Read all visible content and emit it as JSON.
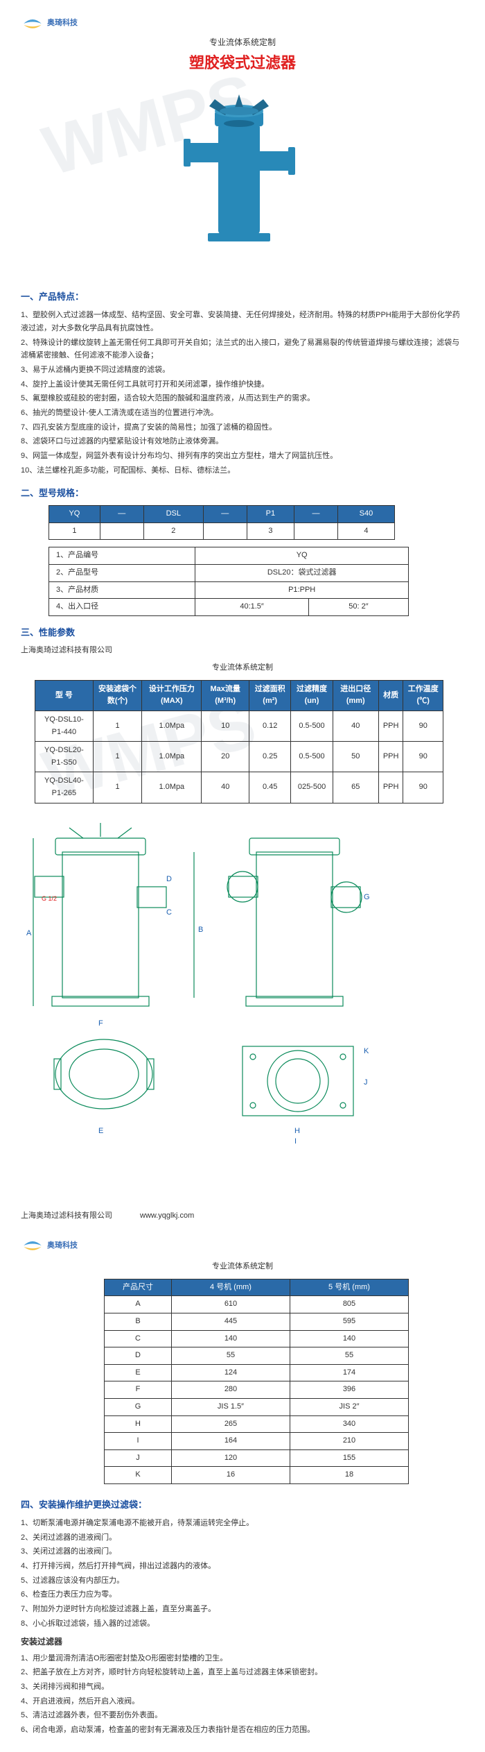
{
  "header": {
    "logo_text": "奥琦科技",
    "subtitle": "专业流体系统定制",
    "title": "塑胶袋式过滤器"
  },
  "sections": {
    "features_h": "一、产品特点：",
    "model_h": "二、型号规格：",
    "perf_h": "三、性能参数",
    "install_h": "四、安装操作维护更换过滤袋：",
    "install_sub": "安装过滤器"
  },
  "features": [
    "1、塑胶例入式过滤器一体成型、结构坚固、安全可靠、安装简捷、无任何焊接处，经济耐用。特殊的材质PPH能用于大部份化学药液过滤，对大多数化学品具有抗腐蚀性。",
    "2、特殊设计的螺纹旋转上盖无需任何工具即可开关自如；法兰式的出入接口，避免了易漏易裂的传统管道焊接与螺纹连接；滤袋与滤桶紧密接触、任何滤液不能渗入设备；",
    "3、易于从滤桶内更换不同过滤精度的滤袋。",
    "4、旋拧上盖设计使其无需任何工具就可打开和关闭滤罩，操作维护快捷。",
    "5、氟塑橡胶或硅胶的密封圈，适合较大范围的酸碱和温度药液，从而达到生产的需求。",
    "6、抽光的筒壁设计-使人工清洗或在适当的位置进行冲洗。",
    "7、四孔安装方型底座的设计，提高了安装的简易性；加强了滤桶的稳固性。",
    "8、滤袋环口与过滤器的内壁紧贴设计有效地防止液体旁漏。",
    "9、网篮一体成型，网篮外表有设计分布均匀、排列有序的突出立方型柱，增大了网篮抗压性。",
    "10、法兰螺栓孔距多功能，可配国标、美标、日标、德标法兰。"
  ],
  "model_table1": {
    "headers": [
      "YQ",
      "—",
      "DSL",
      "—",
      "P1",
      "—",
      "S40"
    ],
    "row": [
      "1",
      "",
      "2",
      "",
      "3",
      "",
      "4"
    ]
  },
  "model_table2": {
    "rows": [
      [
        "1、产品编号",
        "YQ",
        ""
      ],
      [
        "2、产品型号",
        "DSL20：袋式过滤器",
        ""
      ],
      [
        "3、产品材质",
        "P1:PPH",
        ""
      ],
      [
        "4、出入口径",
        "40:1.5″",
        "50: 2″"
      ]
    ]
  },
  "company": "上海奥琦过滤科技有限公司",
  "perf_subtitle": "专业流体系统定制",
  "perf_table": {
    "headers": [
      "型 号",
      "安装滤袋个数(个)",
      "设计工作压力(MAX)",
      "Max流量(M³/h)",
      "过滤面积(m²)",
      "过滤精度(un)",
      "进出口径(mm)",
      "材质",
      "工作温度(℃)"
    ],
    "rows": [
      [
        "YQ-DSL10-P1-440",
        "1",
        "1.0Mpa",
        "10",
        "0.12",
        "0.5-500",
        "40",
        "PPH",
        "90"
      ],
      [
        "YQ-DSL20-P1-S50",
        "1",
        "1.0Mpa",
        "20",
        "0.25",
        "0.5-500",
        "50",
        "PPH",
        "90"
      ],
      [
        "YQ-DSL40-P1-265",
        "1",
        "1.0Mpa",
        "40",
        "0.45",
        "025-500",
        "65",
        "PPH",
        "90"
      ]
    ]
  },
  "dim_subtitle": "专业流体系统定制",
  "dim_table": {
    "headers": [
      "产品尺寸",
      "4 号机 (mm)",
      "5 号机 (mm)"
    ],
    "rows": [
      [
        "A",
        "610",
        "805"
      ],
      [
        "B",
        "445",
        "595"
      ],
      [
        "C",
        "140",
        "140"
      ],
      [
        "D",
        "55",
        "55"
      ],
      [
        "E",
        "124",
        "174"
      ],
      [
        "F",
        "280",
        "396"
      ],
      [
        "G",
        "JIS 1.5″",
        "JIS 2″"
      ],
      [
        "H",
        "265",
        "340"
      ],
      [
        "I",
        "164",
        "210"
      ],
      [
        "J",
        "120",
        "155"
      ],
      [
        "K",
        "16",
        "18"
      ]
    ]
  },
  "install_steps": [
    "1、切断泵浦电源并确定泵浦电源不能被开启，待泵浦运转完全停止。",
    "2、关闭过滤器的进液阀门。",
    "3、关闭过滤器的出液阀门。",
    "4、打开排污阀，然后打开排气阀，排出过滤器内的液体。",
    "5、过滤器应该没有内部压力。",
    "6、检查压力表压力应为零。",
    "7、附加外力逆时针方向松旋过滤器上盖，直至分离盖子。",
    "8、小心拆取过滤袋，插入器的过滤袋。"
  ],
  "install_steps2": [
    "1、用少量润滑剂清洁O形圈密封垫及O形圈密封垫槽的卫生。",
    "2、把盖子放在上方对齐，顺时针方向轻松旋转动上盖，直至上盖与过滤器主体采锁密封。",
    "3、关闭排污阀和排气阀。",
    "4、开启进液阀，然后开启入液阀。",
    "5、清洁过滤器外表，但不要刮伤外表面。",
    "6、闭合电源，启动泵浦，检查盖的密封有无漏液及压力表指针是否在相应的压力范围。"
  ],
  "footer": {
    "company": "上海奥琦过滤科技有限公司",
    "url": "www.yqglkj.com"
  },
  "colors": {
    "title_red": "#e02020",
    "section_blue": "#1a4fa0",
    "table_header": "#2a6aa8",
    "filter_body": "#2889b8",
    "drawing_green": "#0a8a5a",
    "drawing_blue": "#1a5fb0"
  }
}
